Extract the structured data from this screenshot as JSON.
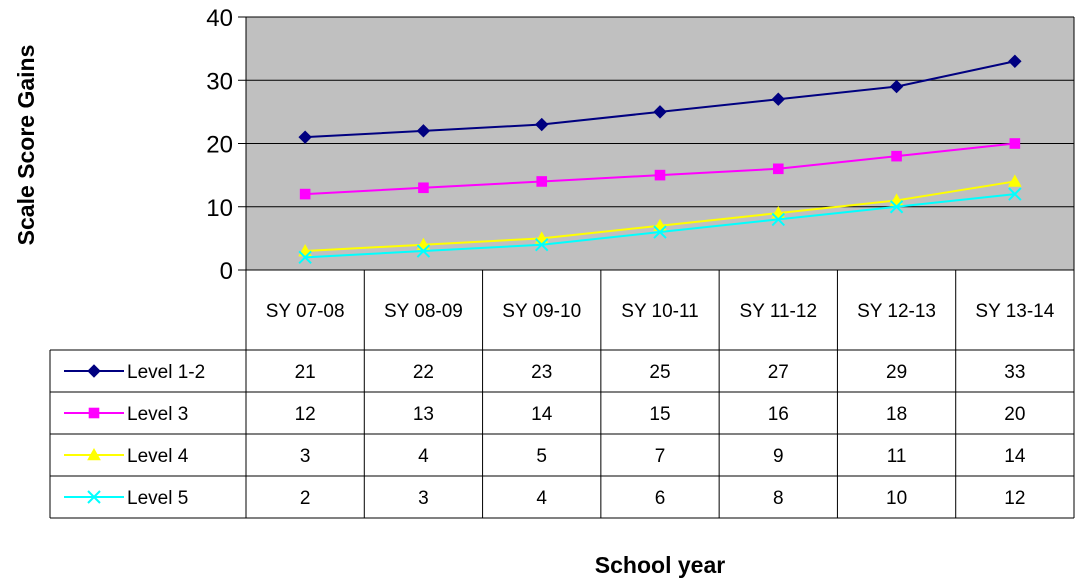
{
  "chart_data": {
    "type": "line",
    "xlabel": "School year",
    "ylabel": "Scale Score Gains",
    "ylim": [
      0,
      40
    ],
    "yticks": [
      0,
      10,
      20,
      30,
      40
    ],
    "grid": true,
    "legend": "data-table",
    "categories": [
      "SY 07-08",
      "SY 08-09",
      "SY 09-10",
      "SY 10-11",
      "SY 11-12",
      "SY 12-13",
      "SY 13-14"
    ],
    "series": [
      {
        "name": "Level 1-2",
        "values": [
          21,
          22,
          23,
          25,
          27,
          29,
          33
        ],
        "color": "#000080",
        "marker": "diamond"
      },
      {
        "name": "Level 3",
        "values": [
          12,
          13,
          14,
          15,
          16,
          18,
          20
        ],
        "color": "#FF00FF",
        "marker": "square"
      },
      {
        "name": "Level 4",
        "values": [
          3,
          4,
          5,
          7,
          9,
          11,
          14
        ],
        "color": "#FFFF00",
        "marker": "triangle"
      },
      {
        "name": "Level 5",
        "values": [
          2,
          3,
          4,
          6,
          8,
          10,
          12
        ],
        "color": "#00FFFF",
        "marker": "x"
      }
    ],
    "plot_background": "#C0C0C0"
  }
}
